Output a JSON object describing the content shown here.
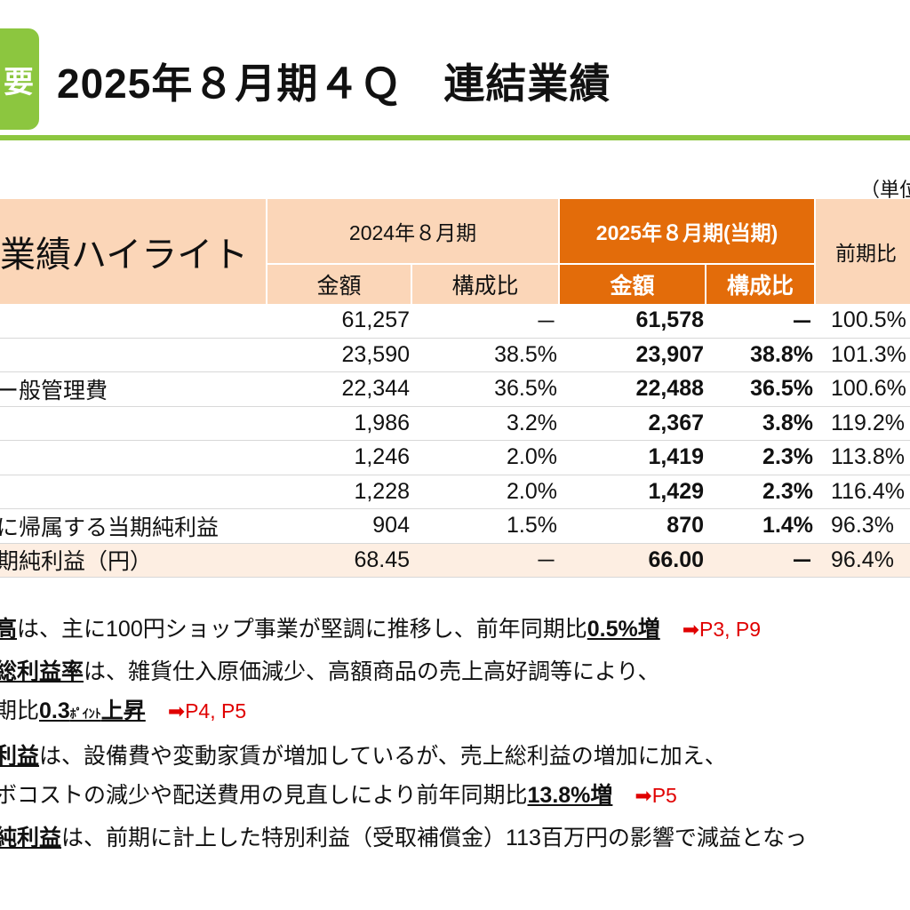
{
  "header": {
    "badge": "要",
    "title": "2025年８月期４Ｑ　連結業績"
  },
  "unit_label": "（単位",
  "table": {
    "section_title": "業績ハイライト",
    "prev_period": "2024年８月期",
    "curr_period": "2025年８月期(当期)",
    "yoy_header": "前期比",
    "amount_header": "金額",
    "ratio_header": "構成比",
    "rows": [
      {
        "label": "",
        "prev_amount": "61,257",
        "prev_ratio": "－",
        "curr_amount": "61,578",
        "curr_ratio": "－",
        "yoy": "100.5%"
      },
      {
        "label": "",
        "prev_amount": "23,590",
        "prev_ratio": "38.5%",
        "curr_amount": "23,907",
        "curr_ratio": "38.8%",
        "yoy": "101.3%"
      },
      {
        "label": "ー般管理費",
        "prev_amount": "22,344",
        "prev_ratio": "36.5%",
        "curr_amount": "22,488",
        "curr_ratio": "36.5%",
        "yoy": "100.6%"
      },
      {
        "label": "",
        "prev_amount": "1,986",
        "prev_ratio": "3.2%",
        "curr_amount": "2,367",
        "curr_ratio": "3.8%",
        "yoy": "119.2%"
      },
      {
        "label": "",
        "prev_amount": "1,246",
        "prev_ratio": "2.0%",
        "curr_amount": "1,419",
        "curr_ratio": "2.3%",
        "yoy": "113.8%"
      },
      {
        "label": "",
        "prev_amount": "1,228",
        "prev_ratio": "2.0%",
        "curr_amount": "1,429",
        "curr_ratio": "2.3%",
        "yoy": "116.4%"
      },
      {
        "label": "に帰属する当期純利益",
        "prev_amount": "904",
        "prev_ratio": "1.5%",
        "curr_amount": "870",
        "curr_ratio": "1.4%",
        "yoy": "96.3%"
      },
      {
        "label": "期純利益（円）",
        "prev_amount": "68.45",
        "prev_ratio": "－",
        "curr_amount": "66.00",
        "curr_ratio": "－",
        "yoy": "96.4%"
      }
    ]
  },
  "bullets": [
    {
      "key": "高",
      "text": "は、主に100円ショップ事業が堅調に推移し、前年同期比",
      "emph": "0.5%増",
      "ref": "➡P3, P9"
    },
    {
      "key": "総利益率",
      "text": "は、雑貨仕入原価減少、高額商品の売上高好調等により、"
    },
    {
      "pre": "期比",
      "emph": "0.3",
      "small": "ﾎﾟｲﾝﾄ",
      "emph2": "上昇",
      "ref": "➡P4, P5"
    },
    {
      "key": "利益",
      "text": "は、設備費や変動家賃が増加しているが、売上総利益の増加に加え、"
    },
    {
      "pre": "ボコストの減少や配送費用の見直しにより前年同期比",
      "emph": "13.8%増",
      "ref": "➡P5"
    },
    {
      "key": "純利益",
      "text": "は、前期に計上した特別利益（受取補償金）113百万円の影響で減益となっ"
    }
  ]
}
